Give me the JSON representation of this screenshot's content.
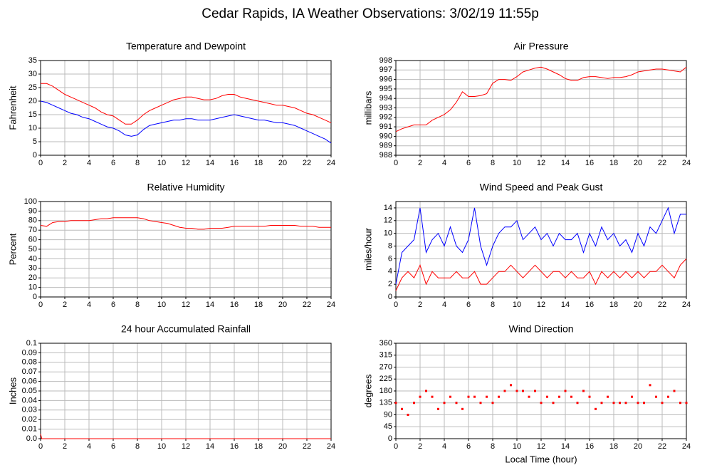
{
  "title": "Cedar Rapids, IA Weather Observations: 3/02/19 11:55p",
  "chart_data": [
    {
      "type": "line",
      "title": "Temperature and Dewpoint",
      "ylabel": "Fahrenheit",
      "x": [
        0,
        0.5,
        1,
        1.5,
        2,
        2.5,
        3,
        3.5,
        4,
        4.5,
        5,
        5.5,
        6,
        6.5,
        7,
        7.5,
        8,
        8.5,
        9,
        9.5,
        10,
        10.5,
        11,
        11.5,
        12,
        12.5,
        13,
        13.5,
        14,
        14.5,
        15,
        15.5,
        16,
        16.5,
        17,
        17.5,
        18,
        18.5,
        19,
        19.5,
        20,
        20.5,
        21,
        21.5,
        22,
        22.5,
        23,
        23.5,
        24
      ],
      "series": [
        {
          "color": "#ff0000",
          "values": [
            26.5,
            26.5,
            25.5,
            24,
            22.5,
            21.5,
            20.5,
            19.5,
            18.5,
            17.5,
            16,
            15,
            14.5,
            13,
            11.5,
            11.5,
            13,
            15,
            16.5,
            17.5,
            18.5,
            19.5,
            20.5,
            21,
            21.5,
            21.5,
            21,
            20.5,
            20.5,
            21,
            22,
            22.5,
            22.5,
            21.5,
            21,
            20.5,
            20,
            19.5,
            19,
            18.5,
            18.5,
            18,
            17.5,
            16.5,
            15.5,
            15,
            14,
            13,
            12
          ]
        },
        {
          "color": "#0000ff",
          "values": [
            20,
            19.5,
            18.5,
            17.5,
            16.5,
            15.5,
            15,
            14,
            13.5,
            12.5,
            11.5,
            10.5,
            10,
            9,
            7.5,
            7,
            7.5,
            9.5,
            11,
            11.5,
            12,
            12.5,
            13,
            13,
            13.5,
            13.5,
            13,
            13,
            13,
            13.5,
            14,
            14.5,
            15,
            14.5,
            14,
            13.5,
            13,
            13,
            12.5,
            12,
            12,
            11.5,
            11,
            10,
            9,
            8,
            7,
            6,
            4.5
          ]
        }
      ],
      "xlim": [
        0,
        24
      ],
      "xticks": [
        0,
        2,
        4,
        6,
        8,
        10,
        12,
        14,
        16,
        18,
        20,
        22,
        24
      ],
      "ylim": [
        0,
        35
      ],
      "yticks": [
        0,
        5,
        10,
        15,
        20,
        25,
        30,
        35
      ],
      "grid": true
    },
    {
      "type": "line",
      "title": "Air Pressure",
      "ylabel": "millibars",
      "x": [
        0,
        0.5,
        1,
        1.5,
        2,
        2.5,
        3,
        3.5,
        4,
        4.5,
        5,
        5.5,
        6,
        6.5,
        7,
        7.5,
        8,
        8.5,
        9,
        9.5,
        10,
        10.5,
        11,
        11.5,
        12,
        12.5,
        13,
        13.5,
        14,
        14.5,
        15,
        15.5,
        16,
        16.5,
        17,
        17.5,
        18,
        18.5,
        19,
        19.5,
        20,
        20.5,
        21,
        21.5,
        22,
        22.5,
        23,
        23.5,
        24
      ],
      "series": [
        {
          "color": "#ff0000",
          "values": [
            990.5,
            990.8,
            991,
            991.2,
            991.2,
            991.2,
            991.7,
            992,
            992.3,
            992.8,
            993.6,
            994.7,
            994.2,
            994.2,
            994.3,
            994.5,
            995.6,
            996,
            996,
            995.9,
            996.3,
            996.8,
            997,
            997.2,
            997.3,
            997.1,
            996.8,
            996.5,
            996.1,
            995.9,
            995.9,
            996.2,
            996.3,
            996.3,
            996.2,
            996.1,
            996.2,
            996.2,
            996.3,
            996.5,
            996.8,
            996.9,
            997,
            997.1,
            997.1,
            997,
            996.9,
            996.8,
            997.3
          ]
        }
      ],
      "xlim": [
        0,
        24
      ],
      "xticks": [
        0,
        2,
        4,
        6,
        8,
        10,
        12,
        14,
        16,
        18,
        20,
        22,
        24
      ],
      "ylim": [
        988,
        998
      ],
      "yticks": [
        988,
        989,
        990,
        991,
        992,
        993,
        994,
        995,
        996,
        997,
        998
      ],
      "grid": true
    },
    {
      "type": "line",
      "title": "Relative Humidity",
      "ylabel": "Percent",
      "x": [
        0,
        0.5,
        1,
        1.5,
        2,
        2.5,
        3,
        3.5,
        4,
        4.5,
        5,
        5.5,
        6,
        6.5,
        7,
        7.5,
        8,
        8.5,
        9,
        9.5,
        10,
        10.5,
        11,
        11.5,
        12,
        12.5,
        13,
        13.5,
        14,
        14.5,
        15,
        15.5,
        16,
        16.5,
        17,
        17.5,
        18,
        18.5,
        19,
        19.5,
        20,
        20.5,
        21,
        21.5,
        22,
        22.5,
        23,
        23.5,
        24
      ],
      "series": [
        {
          "color": "#ff0000",
          "values": [
            75,
            74,
            78,
            79,
            79,
            80,
            80,
            80,
            80,
            81,
            82,
            82,
            83,
            83,
            83,
            83,
            83,
            82,
            80,
            79,
            78,
            77,
            75,
            73,
            72,
            72,
            71,
            71,
            72,
            72,
            72,
            73,
            74,
            74,
            74,
            74,
            74,
            74,
            75,
            75,
            75,
            75,
            75,
            74,
            74,
            74,
            73,
            73,
            73
          ]
        }
      ],
      "xlim": [
        0,
        24
      ],
      "xticks": [
        0,
        2,
        4,
        6,
        8,
        10,
        12,
        14,
        16,
        18,
        20,
        22,
        24
      ],
      "ylim": [
        0,
        100
      ],
      "yticks": [
        0,
        10,
        20,
        30,
        40,
        50,
        60,
        70,
        80,
        90,
        100
      ],
      "grid": true
    },
    {
      "type": "line",
      "title": "Wind Speed and Peak Gust",
      "ylabel": "miles/hour",
      "x": [
        0,
        0.5,
        1,
        1.5,
        2,
        2.5,
        3,
        3.5,
        4,
        4.5,
        5,
        5.5,
        6,
        6.5,
        7,
        7.5,
        8,
        8.5,
        9,
        9.5,
        10,
        10.5,
        11,
        11.5,
        12,
        12.5,
        13,
        13.5,
        14,
        14.5,
        15,
        15.5,
        16,
        16.5,
        17,
        17.5,
        18,
        18.5,
        19,
        19.5,
        20,
        20.5,
        21,
        21.5,
        22,
        22.5,
        23,
        23.5,
        24
      ],
      "series": [
        {
          "color": "#0000ff",
          "values": [
            2,
            7,
            8,
            9,
            14,
            7,
            9,
            10,
            8,
            11,
            8,
            7,
            9,
            14,
            8,
            5,
            8,
            10,
            11,
            11,
            12,
            9,
            10,
            11,
            9,
            10,
            8,
            10,
            9,
            9,
            10,
            7,
            10,
            8,
            11,
            9,
            10,
            8,
            9,
            7,
            10,
            8,
            11,
            10,
            12,
            14,
            10,
            13,
            13
          ]
        },
        {
          "color": "#ff0000",
          "values": [
            1,
            3,
            4,
            3,
            5,
            2,
            4,
            3,
            3,
            3,
            4,
            3,
            3,
            4,
            2,
            2,
            3,
            4,
            4,
            5,
            4,
            3,
            4,
            5,
            4,
            3,
            4,
            4,
            3,
            4,
            3,
            3,
            4,
            2,
            4,
            3,
            4,
            3,
            4,
            3,
            4,
            3,
            4,
            4,
            5,
            4,
            3,
            5,
            6
          ]
        }
      ],
      "xlim": [
        0,
        24
      ],
      "xticks": [
        0,
        2,
        4,
        6,
        8,
        10,
        12,
        14,
        16,
        18,
        20,
        22,
        24
      ],
      "ylim": [
        0,
        15
      ],
      "yticks": [
        0,
        2,
        4,
        6,
        8,
        10,
        12,
        14
      ],
      "grid": true
    },
    {
      "type": "line",
      "title": "24 hour Accumulated Rainfall",
      "ylabel": "Inches",
      "x": [
        0,
        0.1,
        24
      ],
      "series": [
        {
          "color": "#ff0000",
          "values": [
            0.005,
            0,
            0
          ]
        }
      ],
      "xlim": [
        0,
        24
      ],
      "xticks": [
        0,
        2,
        4,
        6,
        8,
        10,
        12,
        14,
        16,
        18,
        20,
        22,
        24
      ],
      "ylim": [
        0,
        0.1
      ],
      "yticks": [
        {
          "value": 0,
          "label": "0.0"
        },
        0.01,
        0.02,
        0.03,
        0.04,
        0.05,
        0.06,
        0.07,
        0.08,
        0.09,
        0.1
      ],
      "grid": true
    },
    {
      "type": "scatter",
      "title": "Wind Direction",
      "ylabel": "degrees",
      "xlabel": "Local Time (hour)",
      "x": [
        0,
        0.5,
        1,
        1.5,
        2,
        2.5,
        3,
        3.5,
        4,
        4.5,
        5,
        5.5,
        6,
        6.5,
        7,
        7.5,
        8,
        8.5,
        9,
        9.5,
        10,
        10.5,
        11,
        11.5,
        12,
        12.5,
        13,
        13.5,
        14,
        14.5,
        15,
        15.5,
        16,
        16.5,
        17,
        17.5,
        18,
        18.5,
        19,
        19.5,
        20,
        20.5,
        21,
        21.5,
        22,
        22.5,
        23,
        23.5,
        24
      ],
      "series": [
        {
          "color": "#ff0000",
          "values": [
            135,
            112,
            90,
            135,
            158,
            180,
            158,
            112,
            135,
            158,
            135,
            112,
            158,
            158,
            135,
            158,
            135,
            158,
            180,
            202,
            180,
            180,
            158,
            180,
            135,
            158,
            135,
            158,
            180,
            158,
            135,
            180,
            158,
            112,
            135,
            158,
            135,
            135,
            135,
            158,
            135,
            135,
            202,
            158,
            135,
            158,
            180,
            135,
            135
          ]
        }
      ],
      "xlim": [
        0,
        24
      ],
      "xticks": [
        0,
        2,
        4,
        6,
        8,
        10,
        12,
        14,
        16,
        18,
        20,
        22,
        24
      ],
      "ylim": [
        0,
        360
      ],
      "yticks": [
        0,
        45,
        90,
        135,
        180,
        225,
        270,
        315,
        360
      ],
      "grid": true
    }
  ]
}
